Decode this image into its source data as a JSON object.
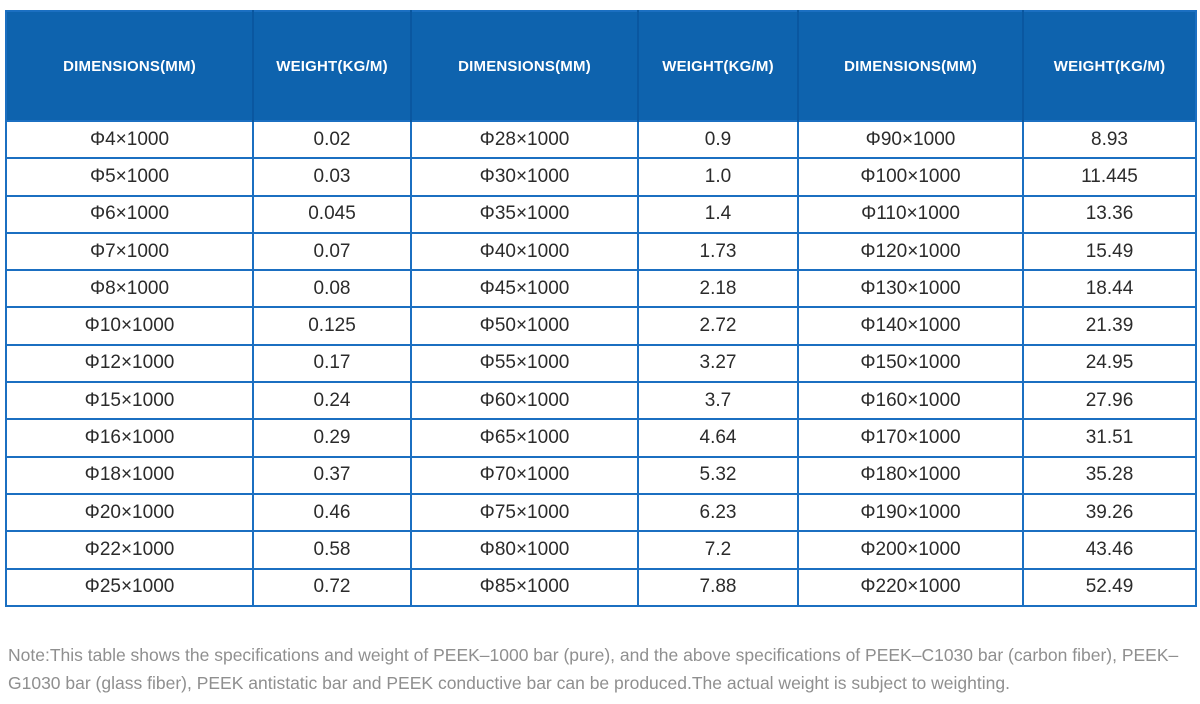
{
  "table": {
    "header_bg_color": "#0e63ae",
    "header_separator_color": "#0a57a0",
    "grid_color": "#1b6fc1",
    "columns": [
      "DIMENSIONS(MM)",
      "WEIGHT(KG/M)",
      "DIMENSIONS(MM)",
      "WEIGHT(KG/M)",
      "DIMENSIONS(MM)",
      "WEIGHT(KG/M)"
    ],
    "rows": [
      [
        "Φ4×1000",
        "0.02",
        "Φ28×1000",
        "0.9",
        "Φ90×1000",
        "8.93"
      ],
      [
        "Φ5×1000",
        "0.03",
        "Φ30×1000",
        "1.0",
        "Φ100×1000",
        "11.445"
      ],
      [
        "Φ6×1000",
        "0.045",
        "Φ35×1000",
        "1.4",
        "Φ110×1000",
        "13.36"
      ],
      [
        "Φ7×1000",
        "0.07",
        "Φ40×1000",
        "1.73",
        "Φ120×1000",
        "15.49"
      ],
      [
        "Φ8×1000",
        "0.08",
        "Φ45×1000",
        "2.18",
        "Φ130×1000",
        "18.44"
      ],
      [
        "Φ10×1000",
        "0.125",
        "Φ50×1000",
        "2.72",
        "Φ140×1000",
        "21.39"
      ],
      [
        "Φ12×1000",
        "0.17",
        "Φ55×1000",
        "3.27",
        "Φ150×1000",
        "24.95"
      ],
      [
        "Φ15×1000",
        "0.24",
        "Φ60×1000",
        "3.7",
        "Φ160×1000",
        "27.96"
      ],
      [
        "Φ16×1000",
        "0.29",
        "Φ65×1000",
        "4.64",
        "Φ170×1000",
        "31.51"
      ],
      [
        "Φ18×1000",
        "0.37",
        "Φ70×1000",
        "5.32",
        "Φ180×1000",
        "35.28"
      ],
      [
        "Φ20×1000",
        "0.46",
        "Φ75×1000",
        "6.23",
        "Φ190×1000",
        "39.26"
      ],
      [
        "Φ22×1000",
        "0.58",
        "Φ80×1000",
        "7.2",
        "Φ200×1000",
        "43.46"
      ],
      [
        "Φ25×1000",
        "0.72",
        "Φ85×1000",
        "7.88",
        "Φ220×1000",
        "52.49"
      ]
    ]
  },
  "note": {
    "text": "Note:This table shows the specifications and weight of PEEK–1000 bar (pure), and the above specifications of PEEK–C1030 bar (carbon fiber), PEEK–G1030 bar (glass fiber), PEEK antistatic bar and PEEK conductive bar can be produced.The actual weight is subject to weighting."
  }
}
